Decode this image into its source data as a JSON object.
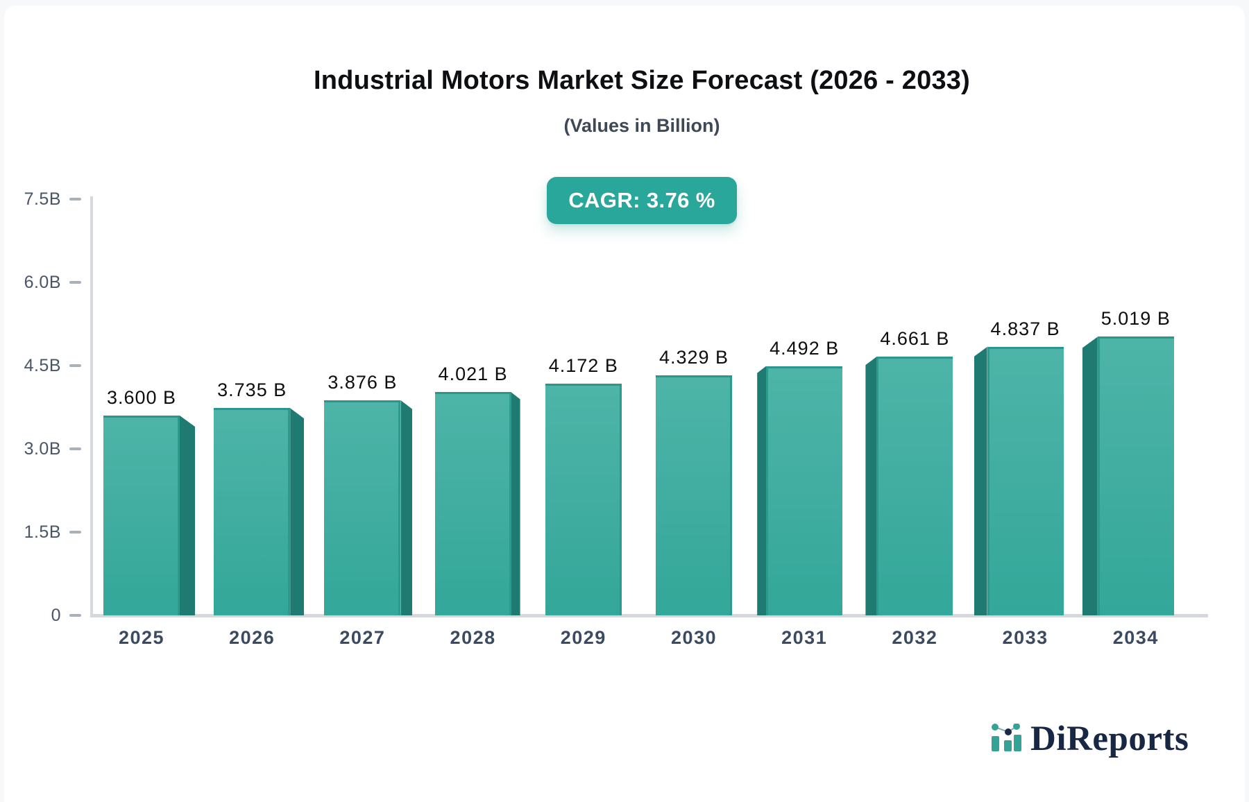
{
  "page": {
    "background": "#f6f8fa",
    "card_background": "#ffffff"
  },
  "header": {
    "title": "Industrial Motors Market Size Forecast (2026 - 2033)",
    "subtitle": "(Values in Billion)"
  },
  "cagr_badge": {
    "label": "CAGR: 3.76 %",
    "background": "#2aa79b",
    "text_color": "#ffffff"
  },
  "chart_data": {
    "type": "bar",
    "title": "Industrial Motors Market Size Forecast (2026 - 2033)",
    "subtitle": "(Values in Billion)",
    "unit": "Billion",
    "categories": [
      "2025",
      "2026",
      "2027",
      "2028",
      "2029",
      "2030",
      "2031",
      "2032",
      "2033",
      "2034"
    ],
    "values": [
      3.6,
      3.735,
      3.876,
      4.021,
      4.172,
      4.329,
      4.492,
      4.661,
      4.837,
      5.019
    ],
    "value_labels": [
      "3.600 B",
      "3.735 B",
      "3.876 B",
      "4.021 B",
      "4.172 B",
      "4.329 B",
      "4.492 B",
      "4.661 B",
      "4.837 B",
      "5.019 B"
    ],
    "xlabel": "",
    "ylabel": "",
    "ylim": [
      0,
      7.5
    ],
    "yticks": [
      {
        "label": "7.5B",
        "value": 7.5
      },
      {
        "label": "6.0B",
        "value": 6.0
      },
      {
        "label": "4.5B",
        "value": 4.5
      },
      {
        "label": "3.0B",
        "value": 3.0
      },
      {
        "label": "1.5B",
        "value": 1.5
      },
      {
        "label": "0",
        "value": 0
      }
    ],
    "grid": false,
    "legend": null,
    "style_3d": true,
    "colors": {
      "bar_face_top": "#4eb4a8",
      "bar_face_bottom": "#33a799",
      "bar_top_edge": "#2b968b",
      "bar_side_panel": "#1f7b71",
      "bar_inner_edge": "#2d9a8e",
      "axis": "#d5d8dd",
      "tick_dash": "#a9b1ba",
      "y_label": "#4a5568",
      "x_label": "#3b4a61",
      "value_label": "#0e0e0e"
    }
  },
  "branding": {
    "name": "DiReports",
    "icon": "bar-line-chart-logo-icon",
    "icon_bar_color": "#35a296",
    "icon_dot_accent_color": "#1b2a4a",
    "text_color": "#182743"
  }
}
